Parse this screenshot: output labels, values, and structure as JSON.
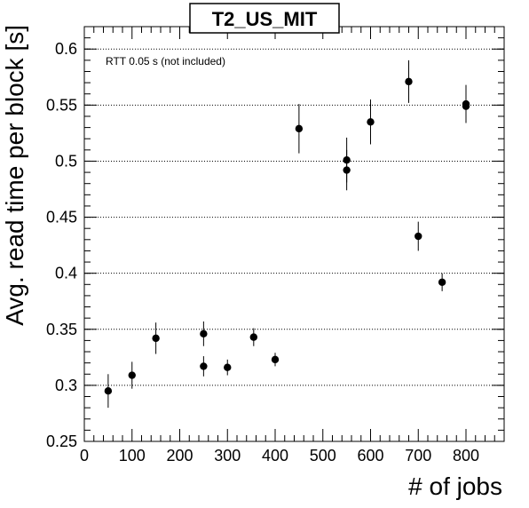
{
  "chart_data": {
    "type": "scatter",
    "title": "T2_US_MIT",
    "xlabel": "# of jobs",
    "ylabel": "Avg. read time per block [s]",
    "annotation": "RTT 0.05 s (not included)",
    "xlim": [
      0,
      880
    ],
    "ylim": [
      0.25,
      0.62
    ],
    "x_ticks": [
      0,
      100,
      200,
      300,
      400,
      500,
      600,
      700,
      800
    ],
    "x_tick_labels": [
      "0",
      "100",
      "200",
      "300",
      "400",
      "500",
      "600",
      "700",
      "800"
    ],
    "y_ticks": [
      0.25,
      0.3,
      0.35,
      0.4,
      0.45,
      0.5,
      0.55,
      0.6
    ],
    "y_tick_labels": [
      "0.25",
      "0.3",
      "0.35",
      "0.4",
      "0.45",
      "0.5",
      "0.55",
      "0.6"
    ],
    "grid": "horizontal dotted",
    "points": [
      {
        "x": 50,
        "y": 0.295,
        "err": 0.015
      },
      {
        "x": 100,
        "y": 0.309,
        "err": 0.012
      },
      {
        "x": 150,
        "y": 0.342,
        "err": 0.014
      },
      {
        "x": 250,
        "y": 0.346,
        "err": 0.011
      },
      {
        "x": 250,
        "y": 0.317,
        "err": 0.009
      },
      {
        "x": 300,
        "y": 0.316,
        "err": 0.007
      },
      {
        "x": 355,
        "y": 0.343,
        "err": 0.008
      },
      {
        "x": 400,
        "y": 0.323,
        "err": 0.006
      },
      {
        "x": 450,
        "y": 0.529,
        "err": 0.022
      },
      {
        "x": 550,
        "y": 0.501,
        "err": 0.02
      },
      {
        "x": 550,
        "y": 0.492,
        "err": 0.018
      },
      {
        "x": 600,
        "y": 0.535,
        "err": 0.02
      },
      {
        "x": 680,
        "y": 0.571,
        "err": 0.019
      },
      {
        "x": 700,
        "y": 0.433,
        "err": 0.013
      },
      {
        "x": 750,
        "y": 0.392,
        "err": 0.008
      },
      {
        "x": 800,
        "y": 0.551,
        "err": 0.017
      },
      {
        "x": 800,
        "y": 0.549,
        "err": 0.015
      }
    ]
  }
}
